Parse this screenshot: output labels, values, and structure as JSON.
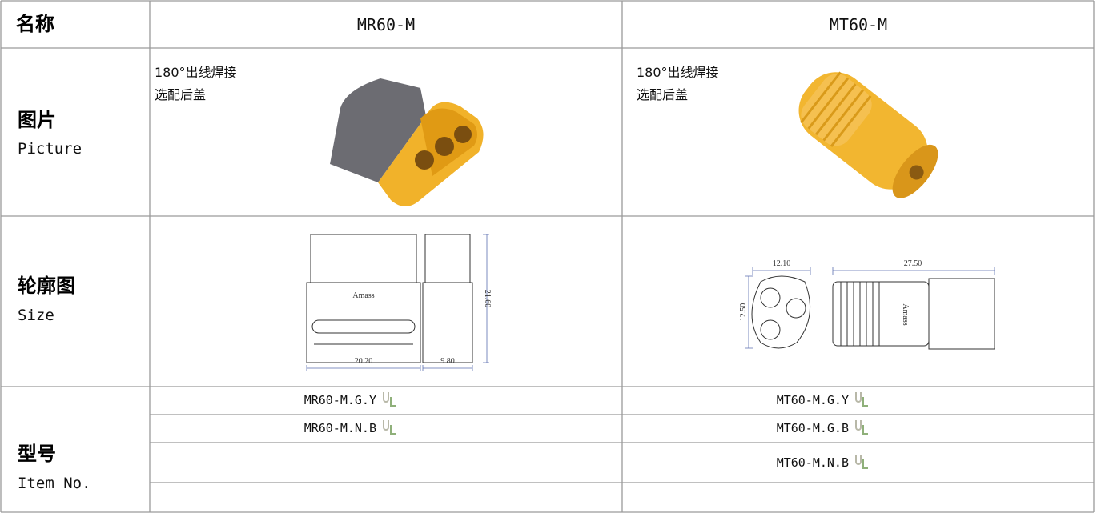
{
  "header": {
    "label": "名称",
    "columns": [
      "MR60-M",
      "MT60-M"
    ]
  },
  "picture": {
    "label": "图片",
    "sublabel": "Picture",
    "notes": [
      [
        "180°出线焊接",
        "选配后盖"
      ],
      [
        "180°出线焊接",
        "选配后盖"
      ]
    ]
  },
  "size": {
    "label": "轮廓图",
    "sublabel": "Size",
    "drawings": [
      {
        "brand": "Amass",
        "dims": [
          "20.20",
          "9.80",
          "21.60"
        ]
      },
      {
        "brand": "Amass",
        "dims": [
          "12.10",
          "27.50",
          "12.50"
        ]
      }
    ]
  },
  "items": {
    "label": "型号",
    "sublabel": "Item No.",
    "models": [
      [
        "MR60-M.G.Y",
        "MR60-M.N.B"
      ],
      [
        "MT60-M.G.Y",
        "MT60-M.G.B",
        "MT60-M.N.B"
      ]
    ]
  }
}
